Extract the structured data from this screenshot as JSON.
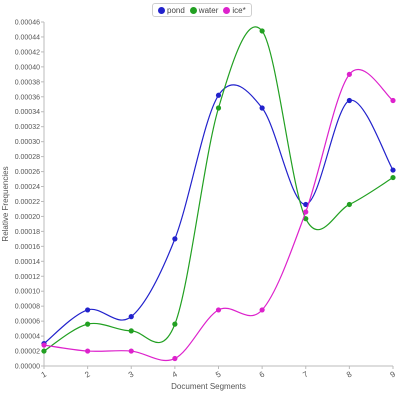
{
  "chart_data": {
    "type": "line",
    "xlabel": "Document Segments",
    "ylabel": "Relative Frequencies",
    "categories": [
      "1",
      "2",
      "3",
      "4",
      "5",
      "6",
      "7",
      "8",
      "9"
    ],
    "ylim": [
      0,
      0.00046
    ],
    "ytick_step": 2e-05,
    "grid": false,
    "legend_position": "top-center",
    "series": [
      {
        "name": "pond",
        "color": "#2222cc",
        "values": [
          3e-05,
          7.5e-05,
          6.6e-05,
          0.00017,
          0.000362,
          0.000345,
          0.000216,
          0.000355,
          0.000262
        ]
      },
      {
        "name": "water",
        "color": "#22a022",
        "values": [
          2e-05,
          5.6e-05,
          4.7e-05,
          5.6e-05,
          0.000345,
          0.000448,
          0.000197,
          0.000216,
          0.000252
        ]
      },
      {
        "name": "ice*",
        "color": "#dd22cc",
        "values": [
          2.8e-05,
          2e-05,
          2e-05,
          1e-05,
          7.5e-05,
          7.5e-05,
          0.000206,
          0.00039,
          0.000355
        ]
      }
    ]
  }
}
